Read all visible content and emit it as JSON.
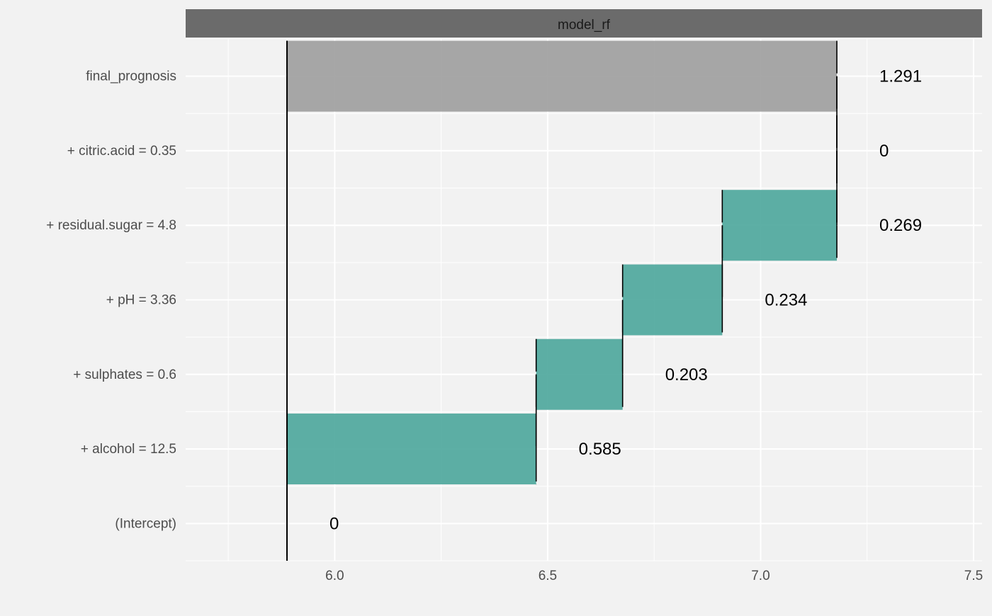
{
  "chart_data": {
    "type": "bar",
    "subtype": "waterfall",
    "panel_title": "model_rf",
    "xlim": [
      5.65,
      7.52
    ],
    "x_ticks": [
      "6.0",
      "6.5",
      "7.0",
      "7.5"
    ],
    "x_tick_values": [
      6.0,
      6.5,
      7.0,
      7.5
    ],
    "baseline": 5.888,
    "grid": true,
    "rows": [
      {
        "label": "final_prognosis",
        "start": 5.888,
        "end": 7.179,
        "label_text": "1.291",
        "kind": "final"
      },
      {
        "label": "+ citric.acid = 0.35",
        "start": 7.179,
        "end": 7.179,
        "label_text": "0",
        "kind": "contribution"
      },
      {
        "label": "+ residual.sugar = 4.8",
        "start": 6.91,
        "end": 7.179,
        "label_text": "0.269",
        "kind": "contribution"
      },
      {
        "label": "+ pH = 3.36",
        "start": 6.676,
        "end": 6.91,
        "label_text": "0.234",
        "kind": "contribution"
      },
      {
        "label": "+ sulphates = 0.6",
        "start": 6.473,
        "end": 6.676,
        "label_text": "0.203",
        "kind": "contribution"
      },
      {
        "label": "+ alcohol = 12.5",
        "start": 5.888,
        "end": 6.473,
        "label_text": "0.585",
        "kind": "contribution"
      },
      {
        "label": "(Intercept)",
        "start": 5.888,
        "end": 5.888,
        "label_text": "0",
        "kind": "intercept"
      }
    ],
    "colors": {
      "background": "#f2f2f2",
      "strip": "#6b6b6b",
      "strip_text": "#1a1a1a",
      "grid": "#ffffff",
      "positive": "#4fa89d",
      "final": "#a0a0a0",
      "connector": "#000000",
      "axis_text": "#4d4d4d",
      "value_text": "#000000"
    }
  }
}
